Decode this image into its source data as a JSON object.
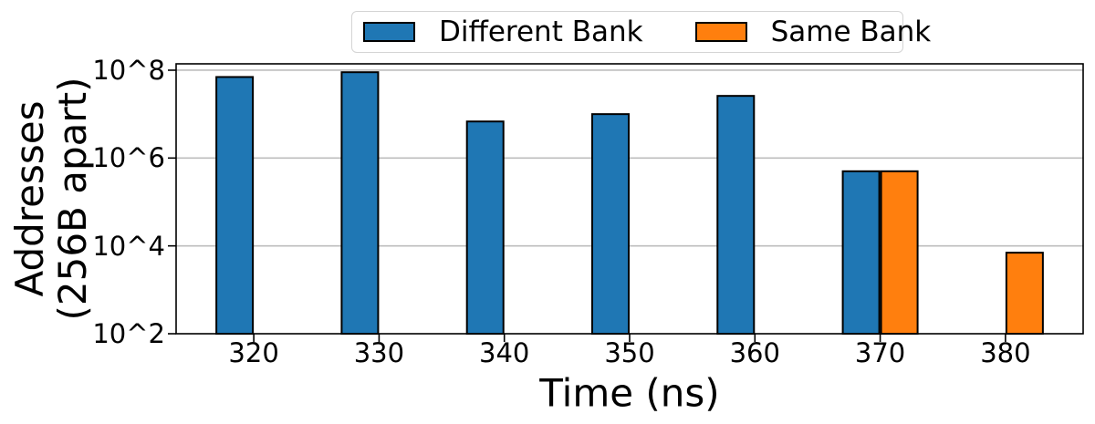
{
  "chart_data": {
    "type": "bar",
    "title": "",
    "xlabel": "Time (ns)",
    "ylabel": "Addresses\n(256B apart)",
    "yscale": "log",
    "categories": [
      320,
      330,
      340,
      350,
      360,
      370,
      380
    ],
    "series": [
      {
        "name": "Different Bank",
        "color": "#1f77b4",
        "values": [
          70000000.0,
          90000000.0,
          6800000.0,
          10000000.0,
          26000000.0,
          500000.0,
          null
        ]
      },
      {
        "name": "Same Bank",
        "color": "#ff7f0e",
        "values": [
          null,
          null,
          null,
          null,
          null,
          500000.0,
          7000.0
        ]
      }
    ],
    "ytick_labels": [
      "10^2",
      "10^4",
      "10^6",
      "10^8"
    ],
    "ytick_exponents": [
      2,
      4,
      6,
      8
    ],
    "ylim_exponents": [
      2,
      8.145
    ],
    "xlim": [
      313.8,
      386.2
    ],
    "grid": true,
    "legend_position": "top-center",
    "bar_edge_color": "#000000",
    "grid_color": "#bdbdbd",
    "spine_color": "#000000"
  }
}
